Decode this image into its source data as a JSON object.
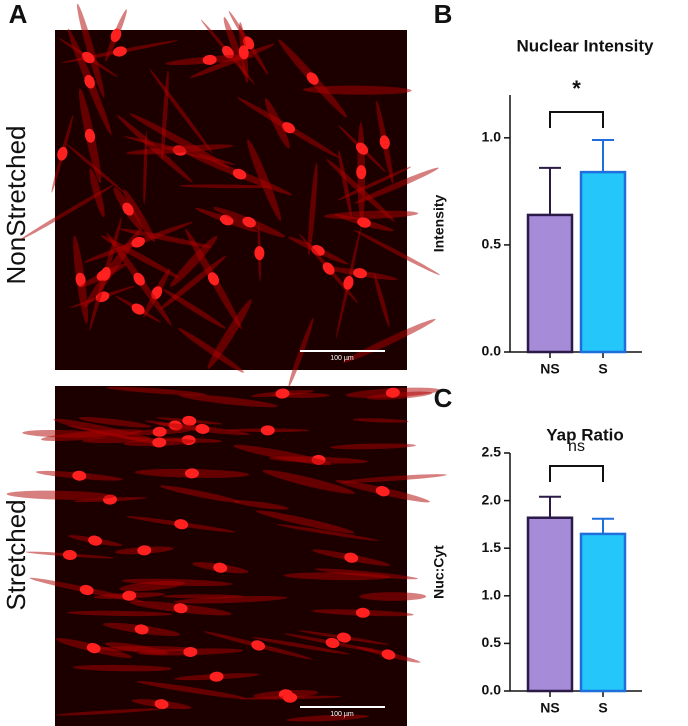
{
  "panels": {
    "A": {
      "label": "A",
      "rows": [
        "NonStretched",
        "Stretched"
      ],
      "scale_bars": [
        "100 µm",
        "100 µm"
      ]
    }
  },
  "chart_data": [
    {
      "type": "bar",
      "panel": "B",
      "title": "Nuclear Intensity",
      "ylabel": "Intensity",
      "categories": [
        "NS",
        "S"
      ],
      "values": [
        0.64,
        0.84
      ],
      "errors": [
        0.22,
        0.15
      ],
      "colors": [
        "#a68bd8",
        "#25c6fa"
      ],
      "edge_colors": [
        "#2b1a48",
        "#1e6fdc"
      ],
      "ylim": [
        0,
        1.2
      ],
      "yticks": [
        {
          "value": 0,
          "label": "0.0"
        },
        0.5,
        {
          "value": 1,
          "label": "1.0"
        }
      ],
      "annotation": "*"
    },
    {
      "type": "bar",
      "panel": "C",
      "title": "Yap Ratio",
      "ylabel": "Nuc:Cyt",
      "categories": [
        "NS",
        "S"
      ],
      "values": [
        1.82,
        1.65
      ],
      "errors": [
        0.22,
        0.16
      ],
      "colors": [
        "#a68bd8",
        "#25c6fa"
      ],
      "edge_colors": [
        "#2b1a48",
        "#1e6fdc"
      ],
      "ylim": [
        0,
        2.5
      ],
      "yticks": [
        {
          "value": 0,
          "label": "0.0"
        },
        0.5,
        {
          "value": 1,
          "label": "1.0"
        },
        1.5,
        {
          "value": 2,
          "label": "2.0"
        },
        2.5
      ],
      "annotation": "ns"
    }
  ]
}
